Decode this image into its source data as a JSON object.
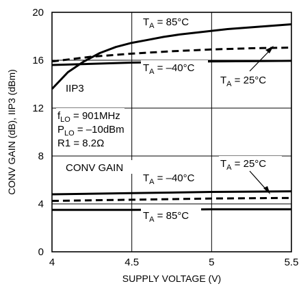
{
  "chart_data": {
    "type": "line",
    "xlabel": "SUPPLY VOLTAGE (V)",
    "ylabel": "CONV GAIN (dB), IIP3 (dBm)",
    "xlim": [
      4,
      5.5
    ],
    "ylim": [
      0,
      20
    ],
    "x_ticks": [
      "4",
      "4.5",
      "5",
      "5.5"
    ],
    "y_ticks": [
      "0",
      "4",
      "8",
      "12",
      "16",
      "20"
    ],
    "grid": true,
    "series": [
      {
        "group": "IIP3",
        "temp": "85",
        "style": "solid",
        "x": [
          4.0,
          4.1,
          4.2,
          4.3,
          4.4,
          4.5,
          4.6,
          4.7,
          4.8,
          4.9,
          5.0,
          5.1,
          5.2,
          5.3,
          5.4,
          5.5
        ],
        "y": [
          13.6,
          15.0,
          15.9,
          16.6,
          17.1,
          17.45,
          17.7,
          17.95,
          18.15,
          18.3,
          18.45,
          18.6,
          18.7,
          18.8,
          18.9,
          19.0
        ]
      },
      {
        "group": "IIP3",
        "temp": "25",
        "style": "dashed",
        "x": [
          4.0,
          4.25,
          4.5,
          4.75,
          5.0,
          5.25,
          5.5
        ],
        "y": [
          15.9,
          16.3,
          16.55,
          16.75,
          16.9,
          17.0,
          17.05
        ]
      },
      {
        "group": "IIP3",
        "temp": "-40",
        "style": "solid",
        "x": [
          4.0,
          4.5,
          5.0,
          5.5
        ],
        "y": [
          15.6,
          15.8,
          15.9,
          15.95
        ]
      },
      {
        "group": "CONV GAIN",
        "temp": "-40",
        "style": "solid",
        "x": [
          4.0,
          4.5,
          5.0,
          5.5
        ],
        "y": [
          4.8,
          4.9,
          5.0,
          5.05
        ]
      },
      {
        "group": "CONV GAIN",
        "temp": "25",
        "style": "dashed",
        "x": [
          4.0,
          4.5,
          5.0,
          5.5
        ],
        "y": [
          4.25,
          4.35,
          4.45,
          4.5
        ]
      },
      {
        "group": "CONV GAIN",
        "temp": "85",
        "style": "solid",
        "x": [
          4.0,
          4.5,
          5.0,
          5.5
        ],
        "y": [
          3.5,
          3.5,
          3.55,
          3.55
        ]
      }
    ],
    "annotations": {
      "iip3_label": "IIP3",
      "gain_label": "CONV GAIN",
      "conditions": [
        "f",
        "LO",
        " = 901MHz",
        "P",
        "LO",
        " = –10dBm",
        "R1 = 8.2Ω"
      ],
      "temp_prefix": "T",
      "temp_sub": "A",
      "temp_85": " = 85°C",
      "temp_25": " = 25°C",
      "temp_m40": " = –40°C"
    },
    "colors": {
      "line": "#000000",
      "grid": "#000000",
      "background": "#ffffff"
    }
  }
}
